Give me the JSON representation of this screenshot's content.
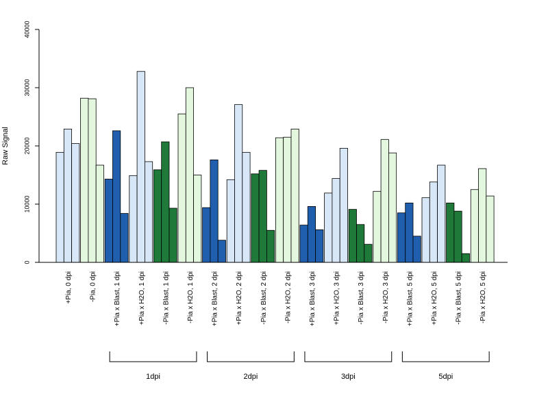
{
  "chart_data": {
    "type": "bar",
    "ylabel": "Raw Signal",
    "ylim": [
      0,
      40000
    ],
    "yticks": [
      0,
      10000,
      20000,
      30000,
      40000
    ],
    "ytick_labels": [
      "0",
      "10000",
      "20000",
      "30000",
      "40000"
    ],
    "grid": false,
    "replicates_per_category": 3,
    "categories": [
      "+Pia, 0 dpi",
      "-Pia, 0 dpi",
      "+Pia x Blast, 1 dpi",
      "+Pia x H2O, 1 dpi",
      "-Pia x Blast, 1 dpi",
      "-Pia x H2O, 1 dpi",
      "+Pia x Blast, 2 dpi",
      "+Pia x H2O, 2 dpi",
      "-Pia x Blast, 2 dpi",
      "-Pia x H2O, 2 dpi",
      "+Pia x Blast, 3 dpi",
      "+Pia x H2O, 3 dpi",
      "-Pia x Blast, 3 dpi",
      "-Pia x H2O, 3 dpi",
      "+Pia x Blast, 5 dpi",
      "+Pia x H2O, 5 dpi",
      "-Pia x Blast, 5 dpi",
      "-Pia x H2O, 5 dpi"
    ],
    "values": [
      [
        18900,
        22900,
        20400
      ],
      [
        28200,
        28100,
        16700
      ],
      [
        14300,
        22600,
        8400
      ],
      [
        14900,
        32800,
        17300
      ],
      [
        15900,
        20700,
        9300
      ],
      [
        25500,
        30000,
        15000
      ],
      [
        9400,
        17600,
        3800
      ],
      [
        14200,
        27100,
        18900
      ],
      [
        15200,
        15800,
        5500
      ],
      [
        21400,
        21500,
        22900
      ],
      [
        6400,
        9600,
        5600
      ],
      [
        11900,
        14400,
        19600
      ],
      [
        9100,
        6500,
        3100
      ],
      [
        12200,
        21100,
        18800
      ],
      [
        8500,
        10200,
        4500
      ],
      [
        11100,
        13800,
        16700
      ],
      [
        10200,
        8800,
        1500
      ],
      [
        12500,
        16100,
        11400
      ]
    ],
    "bar_colors": [
      "#d8e7f7",
      "#e3f7df",
      "#1f5fae",
      "#d8e7f7",
      "#1f7a3a",
      "#e3f7df",
      "#1f5fae",
      "#d8e7f7",
      "#1f7a3a",
      "#e3f7df",
      "#1f5fae",
      "#d8e7f7",
      "#1f7a3a",
      "#e3f7df",
      "#1f5fae",
      "#d8e7f7",
      "#1f7a3a",
      "#e3f7df"
    ],
    "groups": [
      {
        "label": "1dpi",
        "first_category": 2,
        "last_category": 5
      },
      {
        "label": "2dpi",
        "first_category": 6,
        "last_category": 9
      },
      {
        "label": "3dpi",
        "first_category": 10,
        "last_category": 13
      },
      {
        "label": "5dpi",
        "first_category": 14,
        "last_category": 17
      }
    ]
  }
}
